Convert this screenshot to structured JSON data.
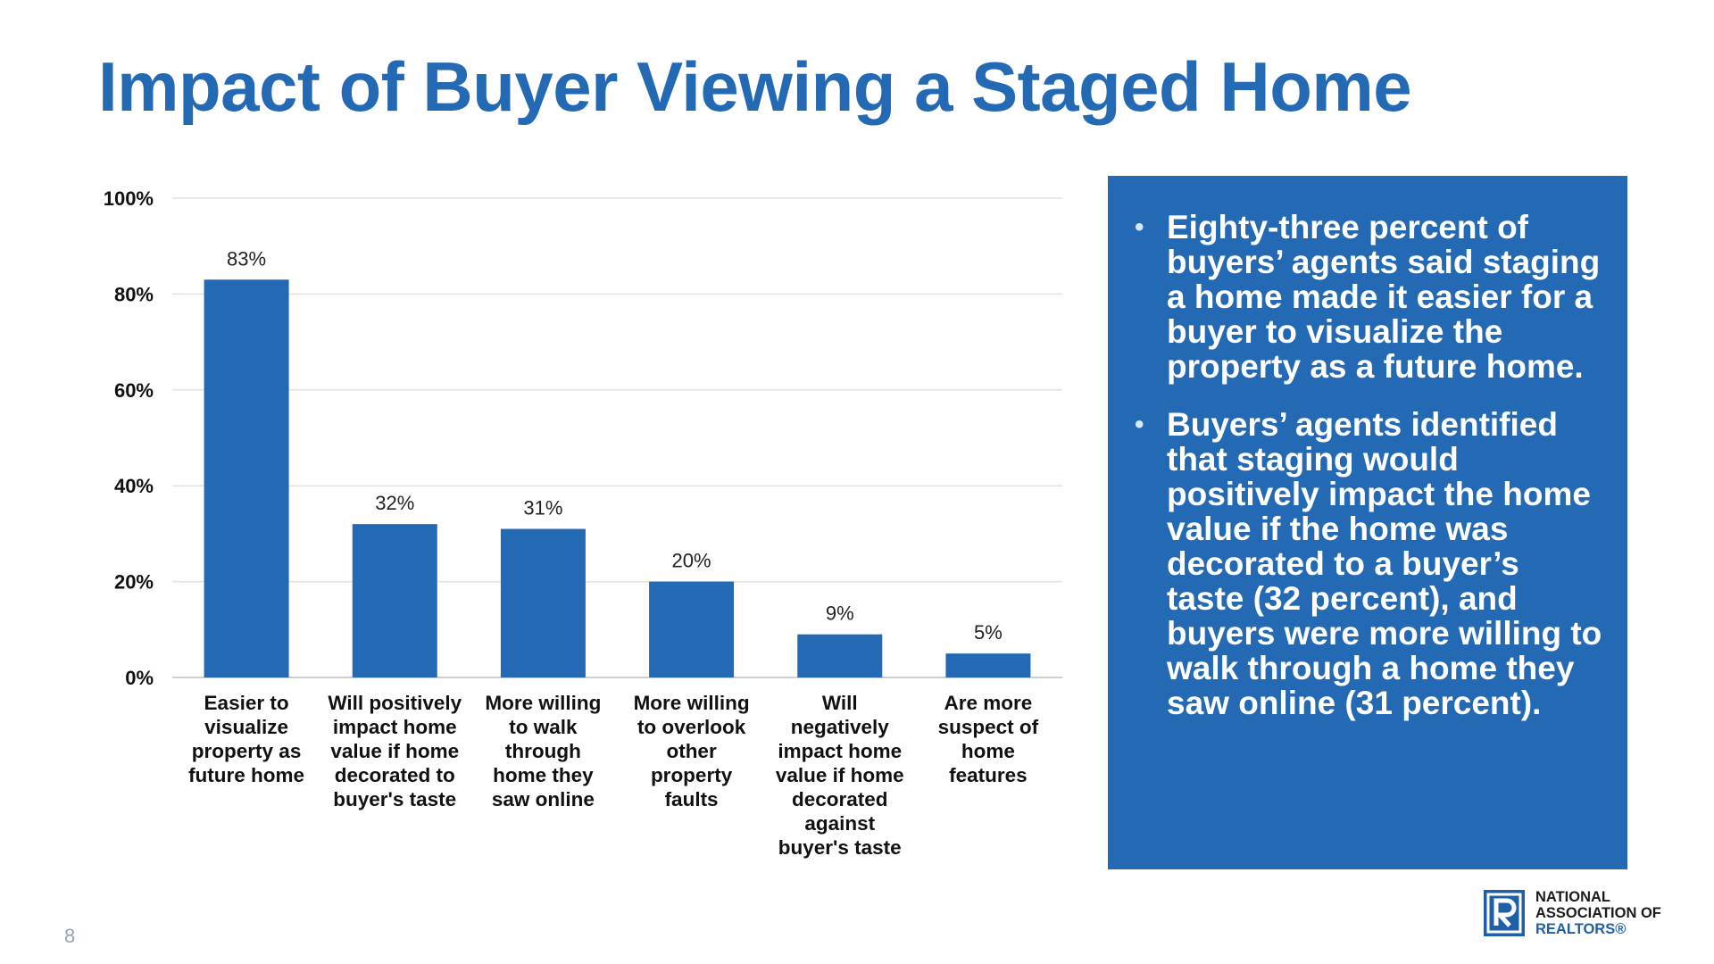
{
  "title": "Impact of Buyer Viewing a Staged Home",
  "chart_data": {
    "type": "bar",
    "title": "",
    "xlabel": "",
    "ylabel": "",
    "categories": [
      "Easier to visualize property as future home",
      "Will positively impact home value if home decorated to buyer's taste",
      "More willing to walk through home they saw online",
      "More willing to overlook other property faults",
      "Will negatively impact home value if home decorated against buyer's taste",
      "Are more suspect of home features"
    ],
    "category_lines": [
      [
        "Easier to",
        "visualize",
        "property as",
        "future home"
      ],
      [
        "Will positively",
        "impact home",
        "value if home",
        "decorated to",
        "buyer's taste"
      ],
      [
        "More willing",
        "to walk",
        "through",
        "home they",
        "saw online"
      ],
      [
        "More willing",
        "to overlook",
        "other",
        "property",
        "faults"
      ],
      [
        "Will",
        "negatively",
        "impact home",
        "value if home",
        "decorated",
        "against",
        "buyer's taste"
      ],
      [
        "Are more",
        "suspect of",
        "home",
        "features"
      ]
    ],
    "values": [
      83,
      32,
      31,
      20,
      9,
      5
    ],
    "data_labels": [
      "83%",
      "32%",
      "31%",
      "20%",
      "9%",
      "5%"
    ],
    "yticks": [
      "0%",
      "20%",
      "40%",
      "60%",
      "80%",
      "100%"
    ],
    "ylim": [
      0,
      100
    ],
    "grid": true,
    "bar_color": "#2469b3"
  },
  "panel": {
    "bullets": [
      "Eighty-three percent of buyers’ agents said staging a home made it easier for a buyer to visualize the property as a future home.",
      "Buyers’ agents identified that staging would positively impact the home value if the home was decorated to a buyer’s taste (32 percent), and buyers were more willing to walk through a home they saw online (31 percent)."
    ]
  },
  "page_number": "8",
  "logo": {
    "line1": "NATIONAL",
    "line2": "ASSOCIATION OF",
    "line3": "REALTORS®"
  },
  "colors": {
    "accent": "#2469b3"
  }
}
